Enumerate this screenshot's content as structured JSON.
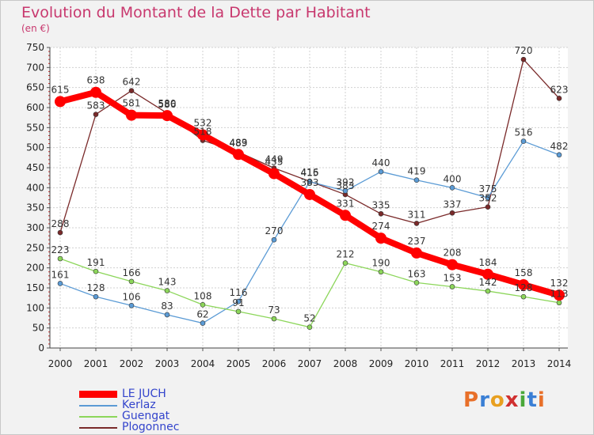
{
  "title": "Evolution du Montant de la Dette par Habitant",
  "subtitle": "(en €)",
  "logo_text": "Proxiti",
  "chart_data": {
    "type": "line",
    "title": "Evolution du Montant de la Dette par Habitant",
    "ylabel": "(en €)",
    "xlabel": "",
    "x": [
      "2000",
      "2001",
      "2002",
      "2003",
      "2004",
      "2005",
      "2006",
      "2007",
      "2008",
      "2009",
      "2010",
      "2011",
      "2012",
      "2013",
      "2014"
    ],
    "ylim": [
      0,
      750
    ],
    "yticks": [
      0,
      50,
      100,
      150,
      200,
      250,
      300,
      350,
      400,
      450,
      500,
      550,
      600,
      650,
      700,
      750
    ],
    "grid": true,
    "legend_position": "bottom-left",
    "series": [
      {
        "name": "LE JUCH",
        "color": "#ff0000",
        "values": [
          615,
          638,
          581,
          580,
          532,
          483,
          435,
          383,
          331,
          274,
          237,
          208,
          184,
          158,
          132
        ],
        "labels": [
          "615",
          "638",
          "581",
          "580",
          "532",
          "483",
          "435",
          "383",
          "331",
          "274",
          "237",
          "208",
          "184",
          "158",
          "132"
        ]
      },
      {
        "name": "Kerlaz",
        "color": "#5b9bd5",
        "values": [
          161,
          128,
          106,
          83,
          62,
          116,
          270,
          415,
          392,
          440,
          419,
          400,
          375,
          516,
          482
        ],
        "labels": [
          "161",
          "128",
          "106",
          "83",
          "62",
          "116",
          "270",
          "415",
          "392",
          "440",
          "419",
          "400",
          "375",
          "516",
          "482"
        ]
      },
      {
        "name": "Guengat",
        "color": "#8cd65a",
        "values": [
          223,
          191,
          166,
          143,
          108,
          91,
          73,
          52,
          212,
          190,
          163,
          153,
          142,
          128,
          113
        ],
        "labels": [
          "223",
          "191",
          "166",
          "143",
          "108",
          "91",
          "73",
          "52",
          "212",
          "190",
          "163",
          "153",
          "142",
          "128",
          "113"
        ]
      },
      {
        "name": "Plogonnec",
        "color": "#7a2a2a",
        "values": [
          288,
          583,
          642,
          586,
          518,
          489,
          449,
          416,
          383,
          335,
          311,
          337,
          352,
          720,
          623
        ],
        "labels": [
          "288",
          "583",
          "642",
          "586",
          "518",
          "489",
          "449",
          "416",
          "383",
          "335",
          "311",
          "337",
          "352",
          "720",
          "623"
        ]
      }
    ]
  }
}
